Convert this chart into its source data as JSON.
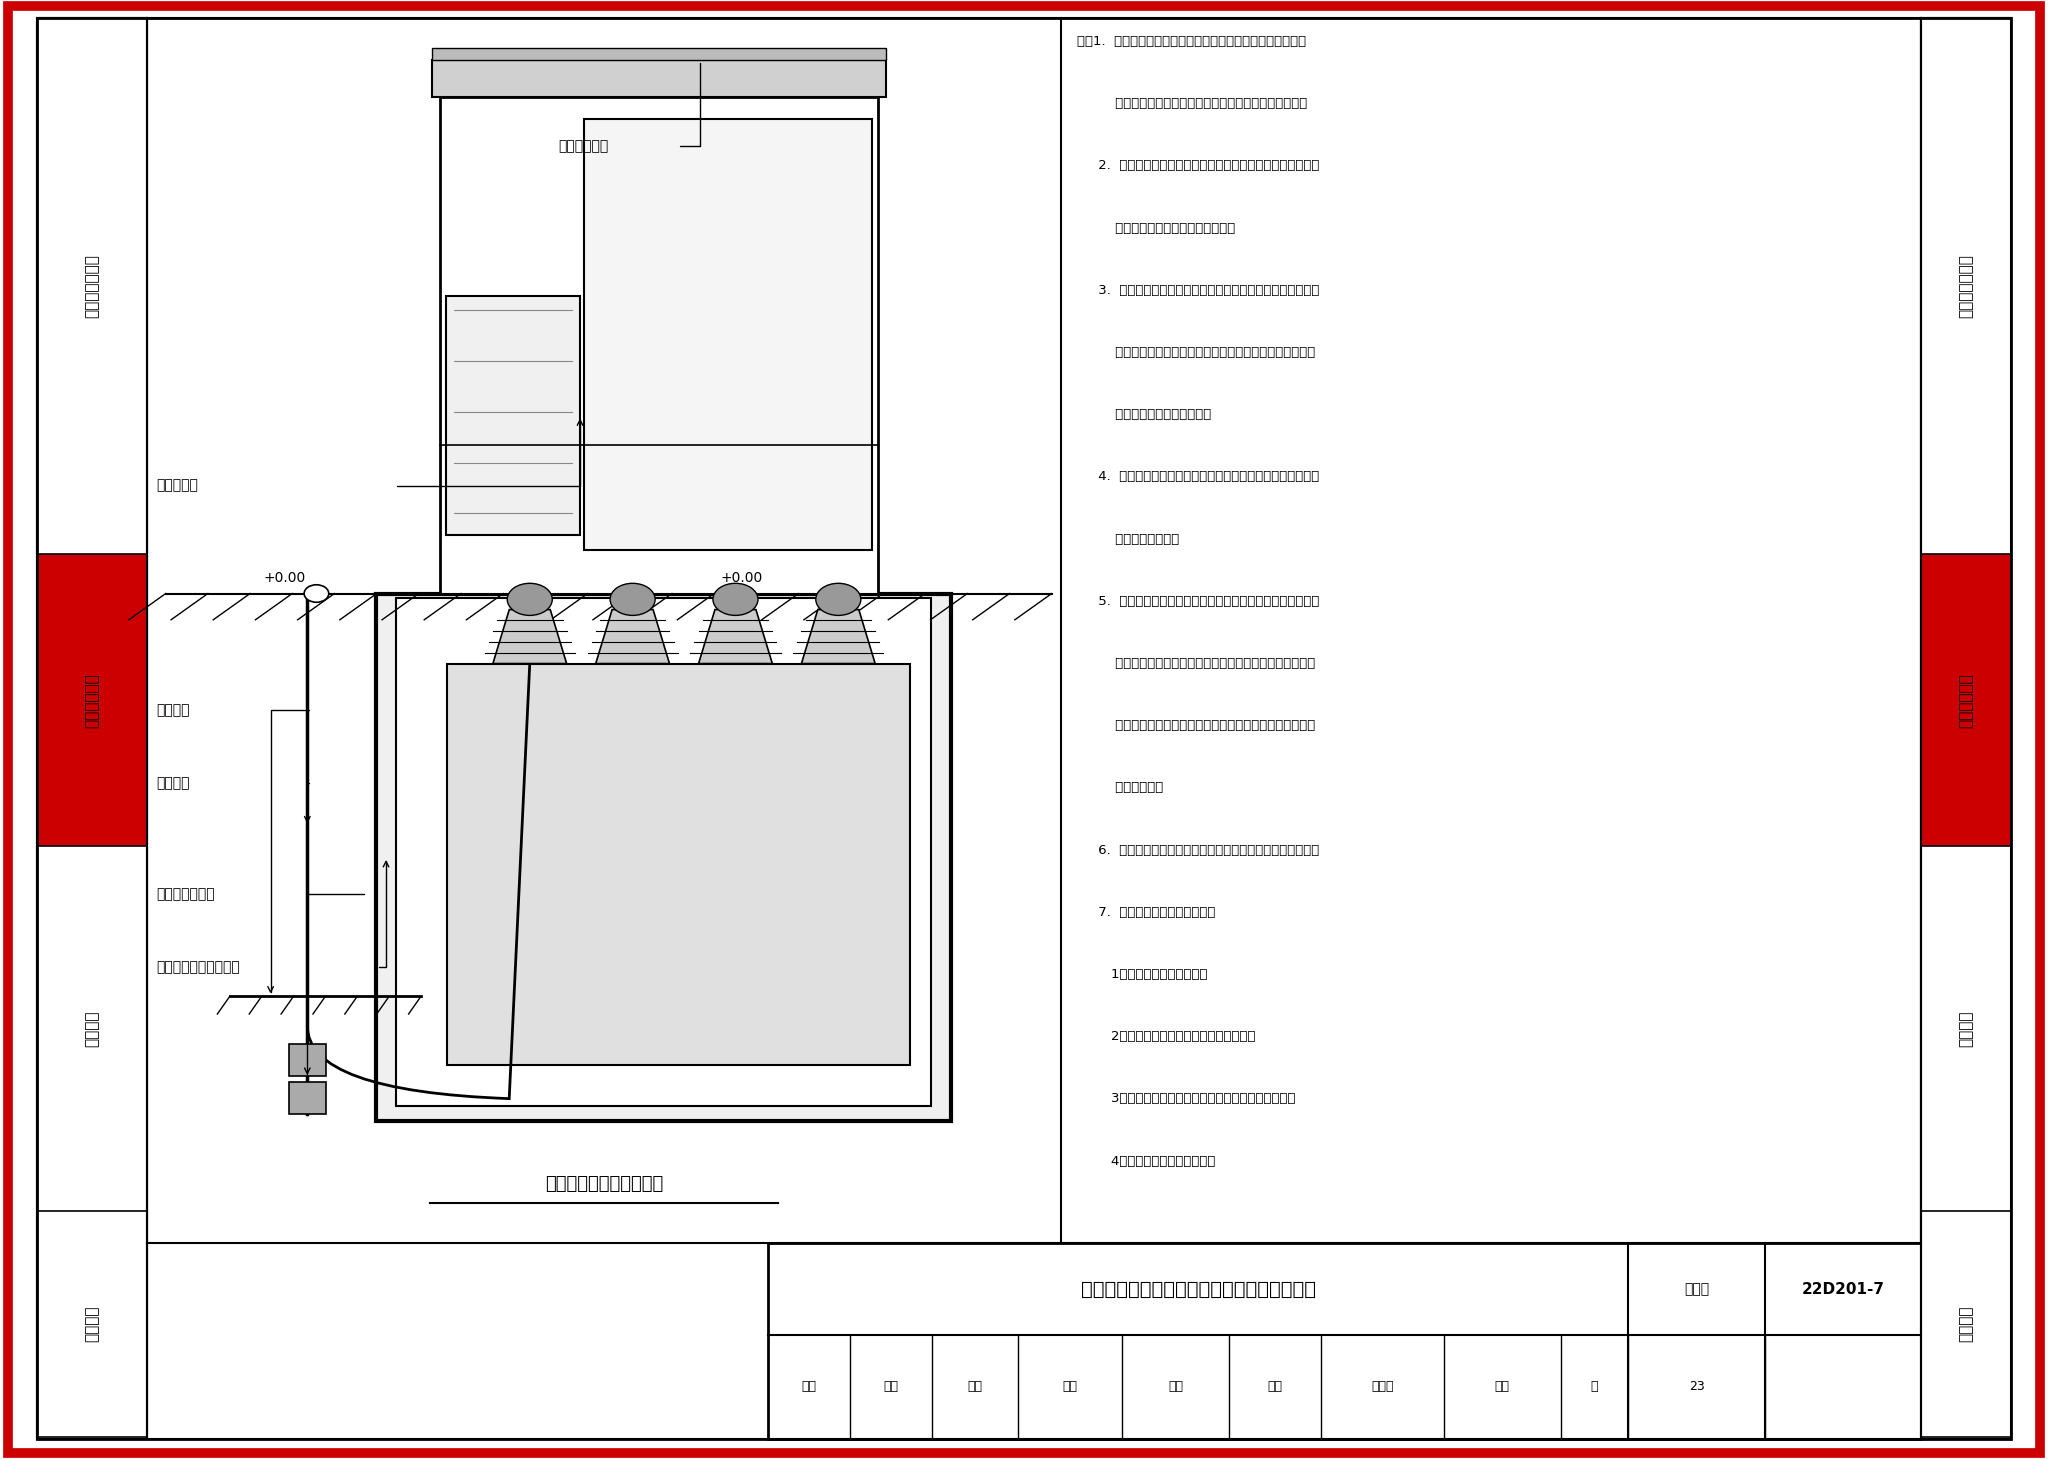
{
  "page_bg": "#ffffff",
  "border_outer_color": "#cc0000",
  "border_inner_color": "#000000",
  "sidebar_sections": [
    {
      "label": "设计与安装要点",
      "yb": 0.62,
      "yt": 0.988,
      "bg": "#ffffff"
    },
    {
      "label": "平面图、详图",
      "yb": 0.42,
      "yt": 0.62,
      "bg": "#cc0000"
    },
    {
      "label": "电气系统",
      "yb": 0.17,
      "yt": 0.42,
      "bg": "#ffffff"
    },
    {
      "label": "配套设施",
      "yb": 0.015,
      "yt": 0.17,
      "bg": "#ffffff"
    }
  ],
  "title_block": {
    "main_title": "地下式变压器高、低压电缆安装示意图（一）",
    "atlas_label": "图集号",
    "atlas_value": "22D201-7",
    "page_label": "页",
    "page_value": "23",
    "row2_labels": [
      "审核",
      "陈琪",
      "校对",
      "胡桃",
      "印船",
      "设计",
      "王胜禹",
      "签名",
      "页",
      "23"
    ]
  },
  "drawing_title": "高、低压电缆安装示意图",
  "notes_lines": [
    "注：1.  电缆连接器分为高压和低压两大类，其中高压电缆连接",
    "         器分内锥和外锥两种型式，具体型式由工程设计确定。",
    "     2.  电缆进线直接由城市电网高压电缆接入至高压进线柜，高",
    "         压进线柜可采用固体柜或充气柜。",
    "     3.  高压出线柜电缆经预装式户外箱体基础穿孔与地埋式变压",
    "         器高压侧连接，变压器的低压侧电缆经预装式户外箱体基",
    "         础穿孔与低压配电柜连接。",
    "     4.  预装式户外箱体基础穿孔上配有密封组件，防止雨水、杂",
    "         质进入预制基舱。",
    "     5.  变压器的高压侧和低压侧电缆均通过专用的电缆连接器连",
    "         接，电缆上均带有与专用电缆连接器相适用的电缆附件，",
    "         在系统安装及运维过程中禁止带电的金属导体直接裸露在",
    "         预制基舱中。",
    "     6.  与变压器连接的高压电缆和低压电缆推荐使用单芯电缆。",
    "     7.  电缆连接器主要性能特点：",
    "        1）全密封、全绝缘结构；",
    "        2）满足地下式变压器的防护等级要求；",
    "        3）不同的变压器容量，可以选择不同的导体截面；",
    "        4）便于用户的检修与维护。"
  ]
}
